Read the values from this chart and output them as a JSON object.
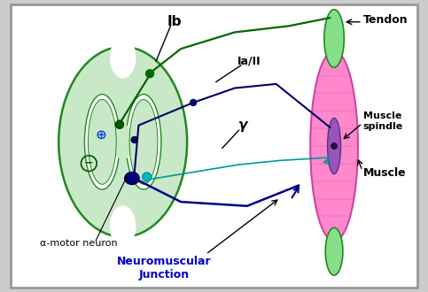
{
  "bg_color": "#cccccc",
  "border_color": "#888888",
  "spinal_cord_color": "#c8e8c8",
  "spinal_cord_outline": "#228822",
  "muscle_color": "#ff88cc",
  "muscle_outline": "#cc44aa",
  "tendon_color": "#88dd88",
  "tendon_outline": "#228822",
  "nerve_Ib_color": "#006600",
  "nerve_Ia_color": "#000066",
  "nerve_gamma_color": "#009999",
  "nerve_motor_color": "#000088",
  "label_Ib": "Ib",
  "label_Ia": "Ia/II",
  "label_gamma": "γ",
  "label_tendon": "Tendon",
  "label_muscle_spindle": "Muscle\nspindle",
  "label_muscle": "Muscle",
  "label_alpha": "α-motor neuron",
  "label_nmj": "Neuromuscular\nJunction"
}
